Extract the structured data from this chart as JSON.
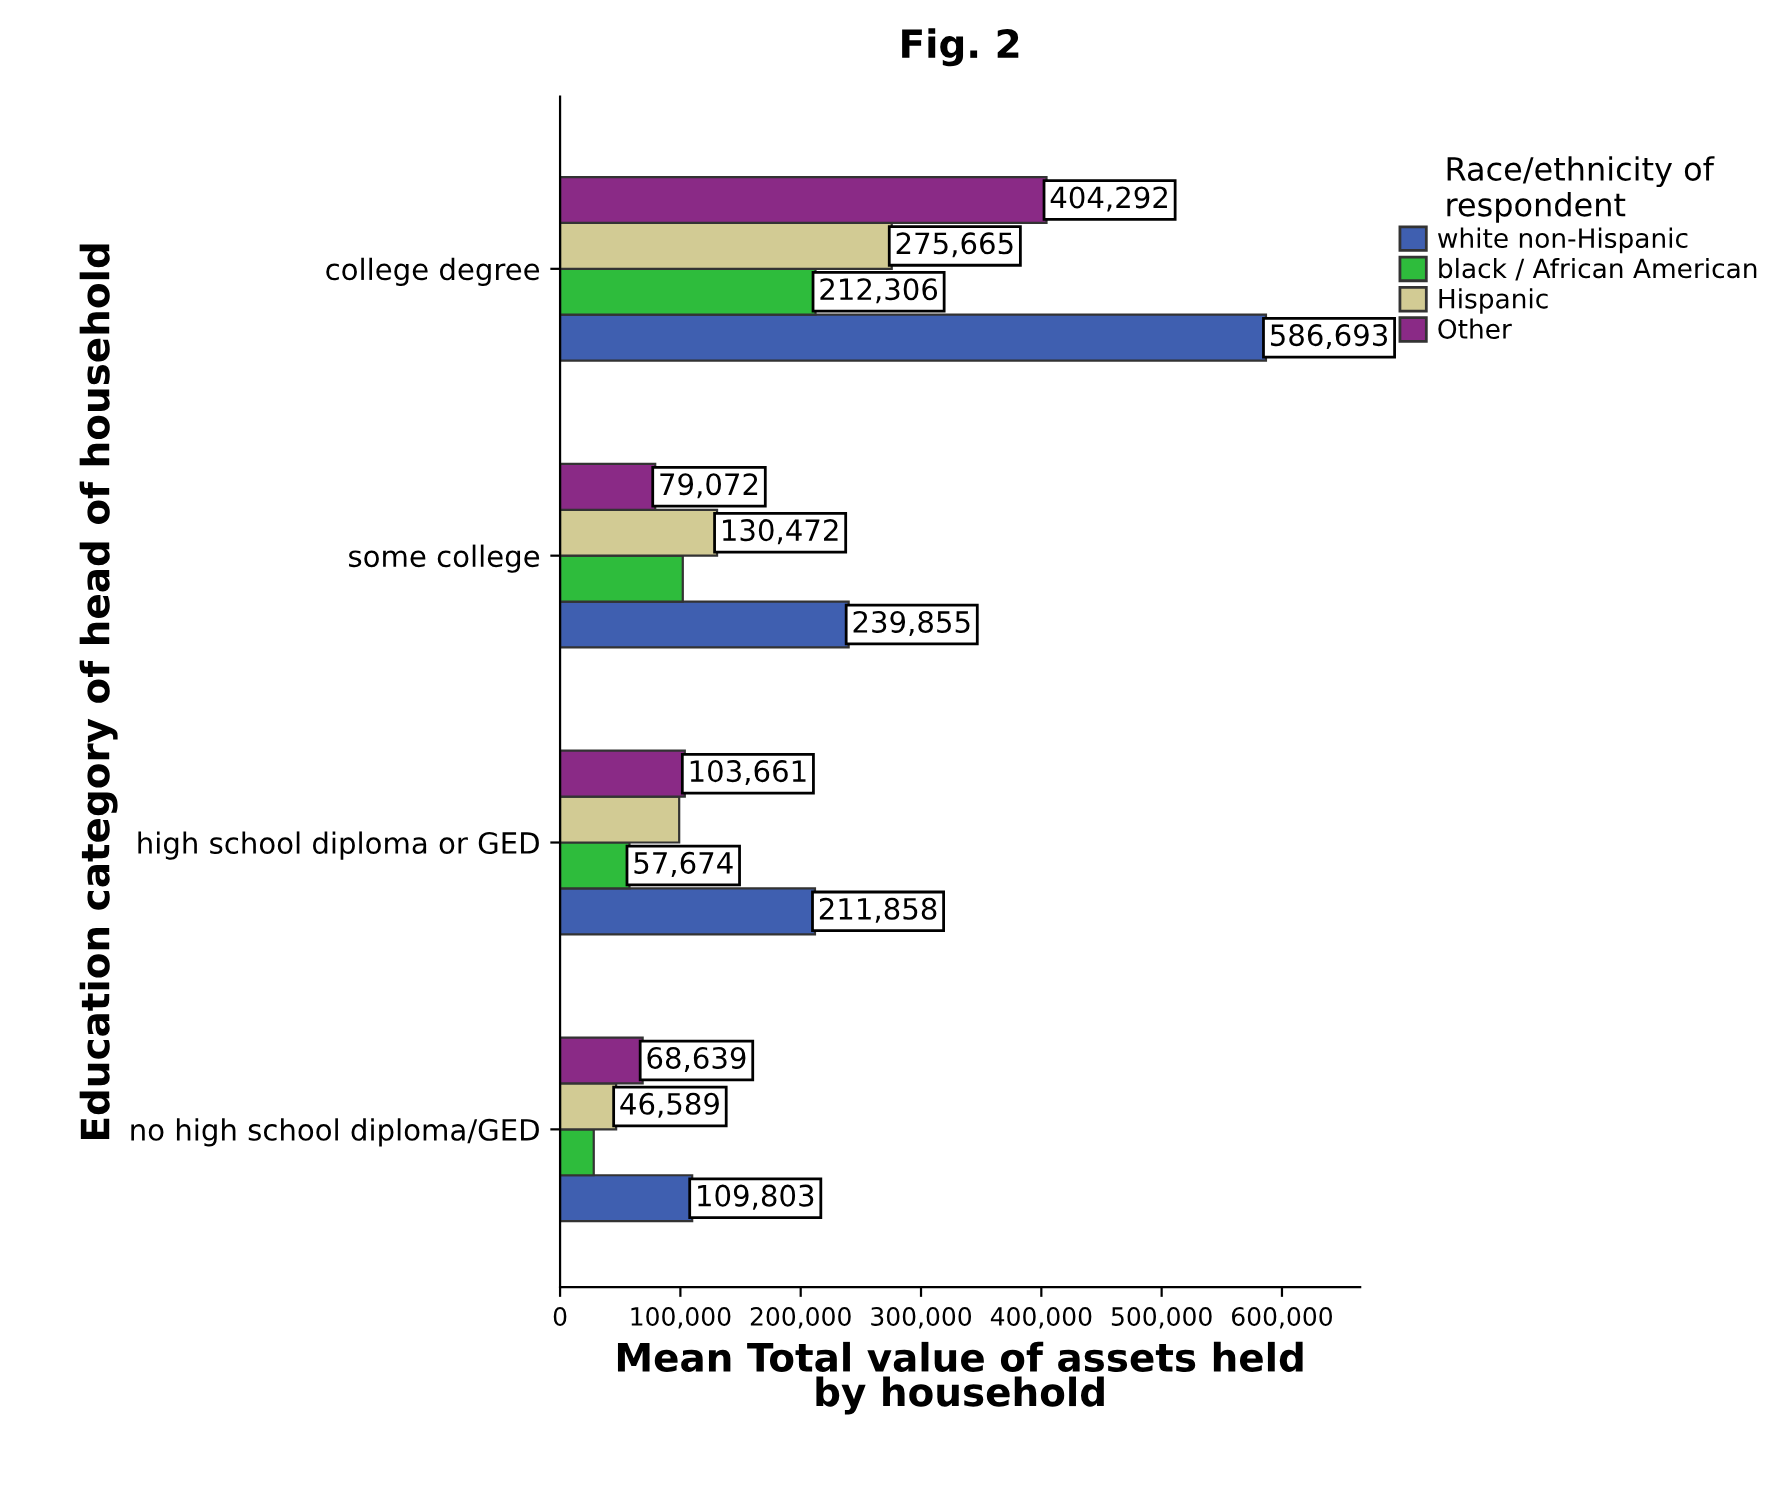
{
  "chart_data": {
    "type": "bar",
    "orientation": "horizontal",
    "title": "Fig. 2",
    "xlabel": "Mean Total value of assets held\nby household",
    "ylabel": "Education category of head of household",
    "legend_title": "Race/ethnicity of\nrespondent",
    "legend": "top right",
    "categories": [
      "college degree",
      "some college",
      "high school diploma or GED",
      "no high school diploma/GED"
    ],
    "series": [
      {
        "name": "white non-Hispanic",
        "color": "#3f5fb0",
        "values": [
          586693,
          239855,
          211858,
          109803
        ],
        "value_labels": [
          "586,693",
          "239,855",
          "211,858",
          "109,803"
        ]
      },
      {
        "name": "black / African American",
        "color": "#2ebc3c",
        "values": [
          212306,
          102000,
          57674,
          28000
        ],
        "value_labels": [
          "212,306",
          null,
          "57,674",
          null
        ]
      },
      {
        "name": "Hispanic",
        "color": "#d2cb94",
        "values": [
          275665,
          130472,
          99000,
          46589
        ],
        "value_labels": [
          "275,665",
          "130,472",
          null,
          "46,589"
        ]
      },
      {
        "name": "Other",
        "color": "#8a2a86",
        "values": [
          404292,
          79072,
          103661,
          68639
        ],
        "value_labels": [
          "404,292",
          "79,072",
          "103,661",
          "68,639"
        ]
      }
    ],
    "xlim": [
      0,
      665000
    ],
    "xticks": [
      {
        "value": 0,
        "label": "0"
      },
      {
        "value": 100000,
        "label": "100,000"
      },
      {
        "value": 200000,
        "label": "200,000"
      },
      {
        "value": 300000,
        "label": "300,000"
      },
      {
        "value": 400000,
        "label": "400,000"
      },
      {
        "value": 500000,
        "label": "500,000"
      },
      {
        "value": 600000,
        "label": "600,000"
      }
    ],
    "grid": false
  }
}
